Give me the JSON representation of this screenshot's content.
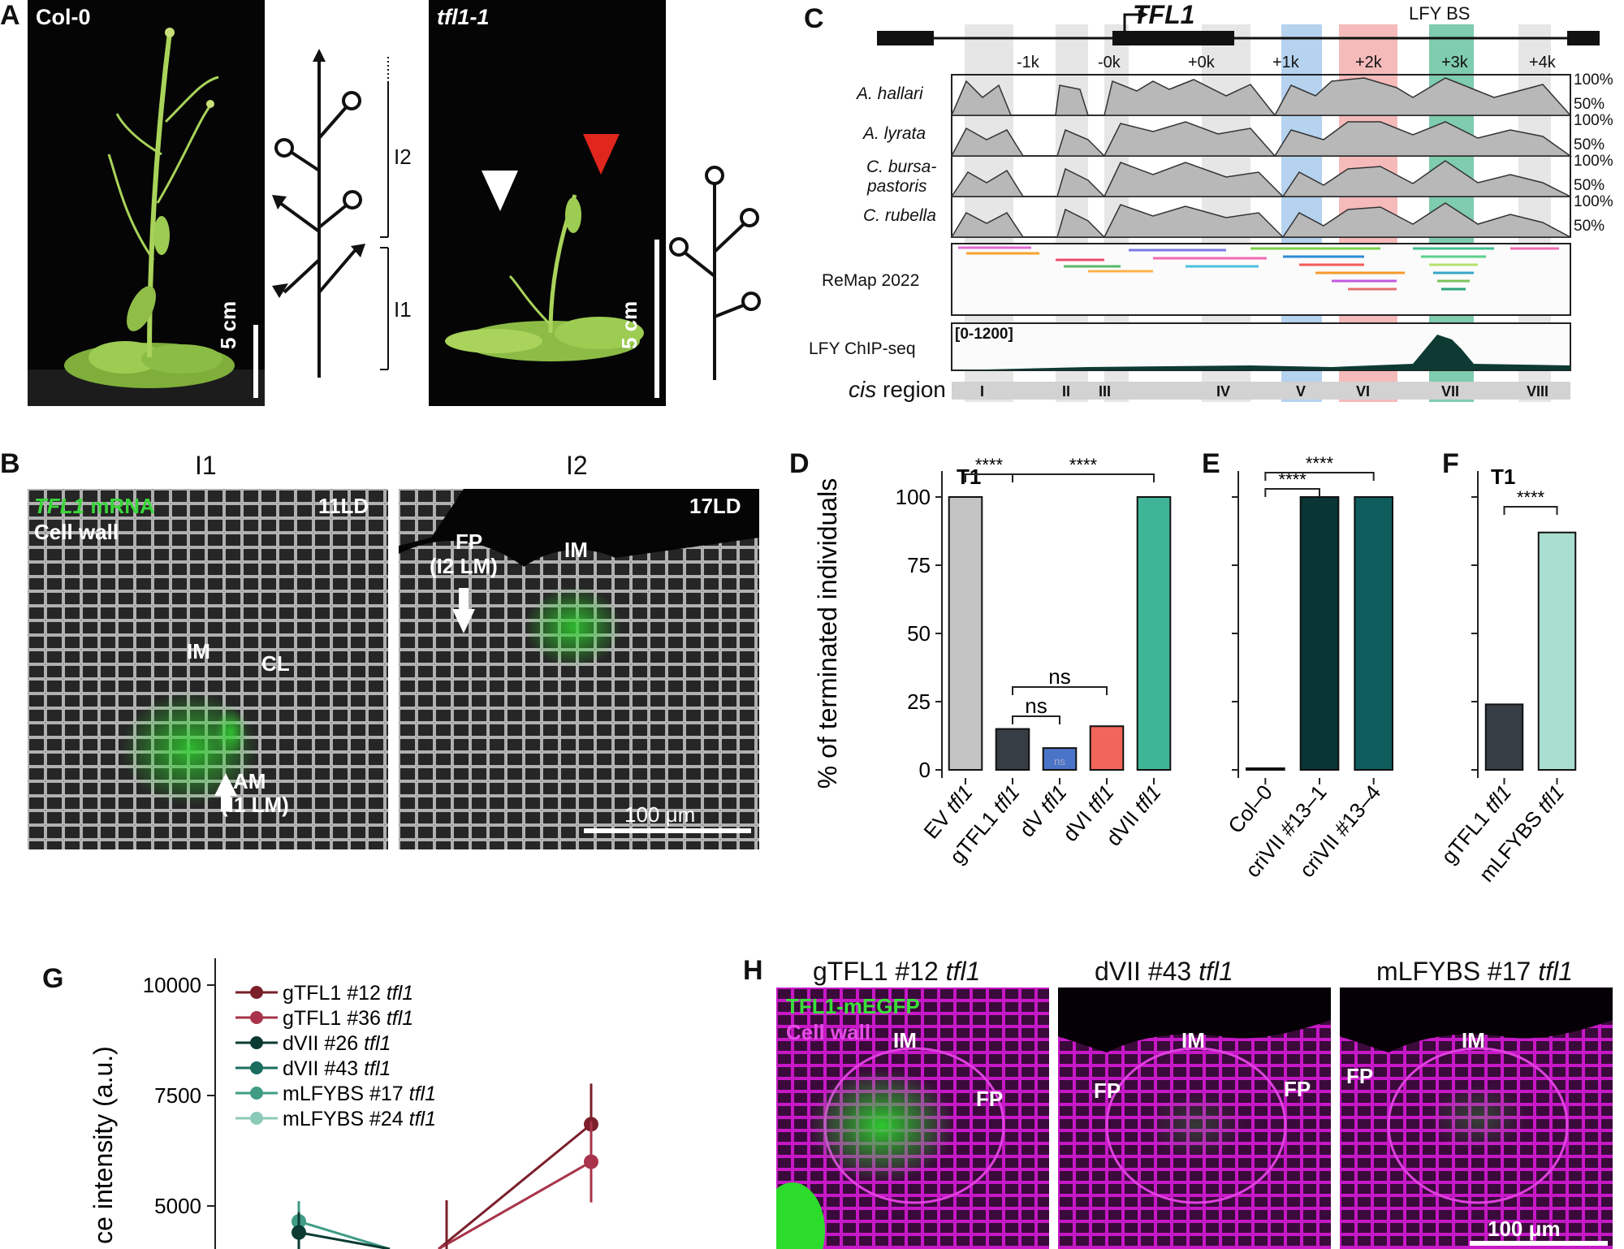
{
  "panels": {
    "A": "A",
    "B": "B",
    "C": "C",
    "D": "D",
    "E": "E",
    "F": "F",
    "G": "G",
    "H": "H"
  },
  "panel_a": {
    "photo1_title": "Col-0",
    "photo2_title": "tfl1-1",
    "scale": "5 cm",
    "bracket_i2": "I2",
    "bracket_i1": "I1"
  },
  "panel_b": {
    "col1_title": "I1",
    "col2_title": "I2",
    "stain_gene": "TFL1",
    "stain_rest": " mRNA",
    "cell_wall": "Cell wall",
    "stage1": "11LD",
    "stage2": "17LD",
    "im": "IM",
    "cl": "CL",
    "am": "AM",
    "am_sub": "(I1 LM)",
    "fp": "FP",
    "fp_sub": "(I2 LM)",
    "scale": "100 μm"
  },
  "panel_c": {
    "gene": "TFL1",
    "lfy_bs": "LFY BS",
    "positions": [
      "-1k",
      "-0k",
      "+0k",
      "+1k",
      "+2k",
      "+3k",
      "+4k"
    ],
    "species": [
      "A. hallari",
      "A. lyrata",
      "C. bursa-",
      "pastoris",
      "C. rubella"
    ],
    "pct100": "100%",
    "pct50": "50%",
    "remap": "ReMap 2022",
    "chip": "LFY ChIP-seq",
    "chip_range": "[0-1200]",
    "cis_label": "cis",
    "cis_rest": " region",
    "regions": [
      "I",
      "II",
      "III",
      "IV",
      "V",
      "VI",
      "VII",
      "VIII"
    ],
    "colors": {
      "V": "#9cc3ea",
      "VI": "#f1a3a3",
      "VII": "#5fbf9a"
    }
  },
  "chart_data": [
    {
      "panel": "D",
      "type": "bar",
      "ylabel": "% of terminated individuals",
      "ylim": [
        0,
        100
      ],
      "yticks": [
        0,
        25,
        50,
        75,
        100
      ],
      "corner_label": "T1",
      "categories": [
        "EV tfl1",
        "gTFL1 tfl1",
        "dV tfl1",
        "dVI tfl1",
        "dVII tfl1"
      ],
      "values": [
        100,
        15,
        8,
        16,
        100
      ],
      "colors": [
        "#c4c4c4",
        "#363d44",
        "#4a74c8",
        "#f2655a",
        "#3eb597"
      ],
      "significance": [
        "****",
        "****",
        "ns",
        "ns"
      ]
    },
    {
      "panel": "E",
      "type": "bar",
      "categories": [
        "Col–0",
        "criVII #13–1",
        "criVII #13–4"
      ],
      "values": [
        0,
        100,
        100
      ],
      "colors": [
        "#0e2a2a",
        "#0a3535",
        "#0e5c5c"
      ],
      "significance": [
        "****",
        "****"
      ]
    },
    {
      "panel": "F",
      "type": "bar",
      "corner_label": "T1",
      "categories": [
        "gTFL1 tfl1",
        "mLFYBS tfl1"
      ],
      "values": [
        24,
        87
      ],
      "colors": [
        "#363d44",
        "#a8dfd0"
      ],
      "significance": [
        "****"
      ]
    },
    {
      "panel": "G",
      "type": "line",
      "ylabel": "ce intensity (a.u.)",
      "yticks": [
        5000,
        7500,
        10000
      ],
      "series": [
        {
          "name": "gTFL1 #12 tfl1",
          "color": "#7b1f2b"
        },
        {
          "name": "gTFL1 #36 tfl1",
          "color": "#a8334a"
        },
        {
          "name": "dVII #26 tfl1",
          "color": "#0b3b33"
        },
        {
          "name": "dVII #43 tfl1",
          "color": "#1a6d5e"
        },
        {
          "name": "mLFYBS #17 tfl1",
          "color": "#3f9c84"
        },
        {
          "name": "mLFYBS #24 tfl1",
          "color": "#8ccab8"
        }
      ],
      "visible_points": {
        "gTFL1 #12 tfl1": [
          6850
        ],
        "gTFL1 #36 tfl1": [
          6000
        ],
        "dVII #26 tfl1": [
          4400
        ],
        "mLFYBS #17 tfl1": [
          4650
        ]
      }
    }
  ],
  "panel_h": {
    "titles": [
      {
        "main": "gTFL1 #12 ",
        "it": "tfl1"
      },
      {
        "main": "dVII #43 ",
        "it": "tfl1"
      },
      {
        "main": "mLFYBS #17 ",
        "it": "tfl1"
      }
    ],
    "gfp_label": "TFL1-mEGFP",
    "wall_label": "Cell wall",
    "im": "IM",
    "fp": "FP",
    "scale": "100 μm"
  }
}
